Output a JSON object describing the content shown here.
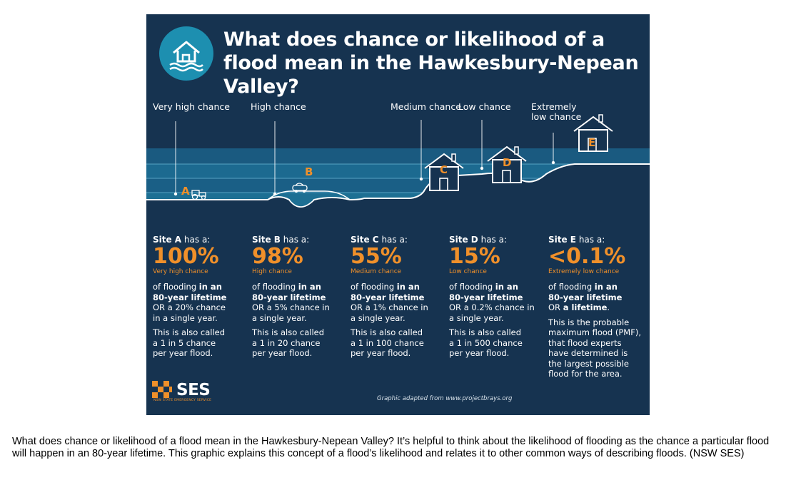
{
  "title": "What does chance or likelihood of a flood mean in the Hawkesbury-Nepean Valley?",
  "chance_labels": {
    "very_high": "Very high chance",
    "high": "High chance",
    "medium": "Medium chance",
    "low": "Low chance",
    "extremely_low_1": "Extremely",
    "extremely_low_2": "low chance"
  },
  "site_letters": {
    "a": "A",
    "b": "B",
    "c": "C",
    "d": "D",
    "e": "E"
  },
  "sites": [
    {
      "name": "Site A",
      "has_a": " has a:",
      "percent": "100%",
      "percent_label": "Very high chance",
      "line1": "of flooding ",
      "line1b": "in an",
      "line2": "80-year lifetime",
      "line3": "OR a 20% chance",
      "line4": "in a single year.",
      "note1": "This is also called",
      "note2": "a 1 in 5 chance",
      "note3": "per year flood."
    },
    {
      "name": "Site B",
      "has_a": " has a:",
      "percent": "98%",
      "percent_label": "High chance",
      "line1": "of flooding ",
      "line1b": "in an",
      "line2": "80-year lifetime",
      "line3": "OR a 5% chance in",
      "line4": "a single year.",
      "note1": "This is also called",
      "note2": "a 1 in 20 chance",
      "note3": "per year flood."
    },
    {
      "name": "Site C",
      "has_a": " has a:",
      "percent": "55%",
      "percent_label": "Medium chance",
      "line1": "of flooding ",
      "line1b": "in an",
      "line2": "80-year lifetime",
      "line3": "OR a 1% chance in",
      "line4": "a single year.",
      "note1": "This is also called",
      "note2": "a 1 in 100 chance",
      "note3": "per year flood."
    },
    {
      "name": "Site D",
      "has_a": " has a:",
      "percent": "15%",
      "percent_label": "Low chance",
      "line1": "of flooding ",
      "line1b": "in an",
      "line2": "80-year lifetime",
      "line3": "OR a 0.2% chance in",
      "line4": "a single year.",
      "note1": "This is also called",
      "note2": "a 1 in 500 chance",
      "note3": "per year flood."
    }
  ],
  "site_e": {
    "name": "Site E",
    "has_a": " has a:",
    "percent": "<0.1%",
    "percent_label": "Extremely low chance",
    "line1": "of flooding ",
    "line1b": "in an",
    "line2": "80-year lifetime",
    "line3a": "OR ",
    "line3b": "a lifetime",
    "line3c": ".",
    "note1": "This is the probable",
    "note2": "maximum flood (PMF),",
    "note3": "that flood experts",
    "note4": "have determined is",
    "note5": "the largest possible",
    "note6": "flood for the area."
  },
  "logo": {
    "text": "SES",
    "sub": "NSW STATE EMERGENCY SERVICE"
  },
  "credit": "Graphic adapted from www.projectbrays.org",
  "caption": "What does chance or likelihood of a flood mean in the Hawkesbury-Nepean Valley? It’s helpful to think about the likelihood of flooding as the chance a particular flood will happen in an 80-year lifetime. This graphic explains this concept of a flood’s likelihood and relates it to other common ways of describing floods. (NSW SES)",
  "colors": {
    "background": "#163350",
    "accent": "#f0902a",
    "water": "#1d6f93",
    "badge": "#1d8fb0"
  }
}
